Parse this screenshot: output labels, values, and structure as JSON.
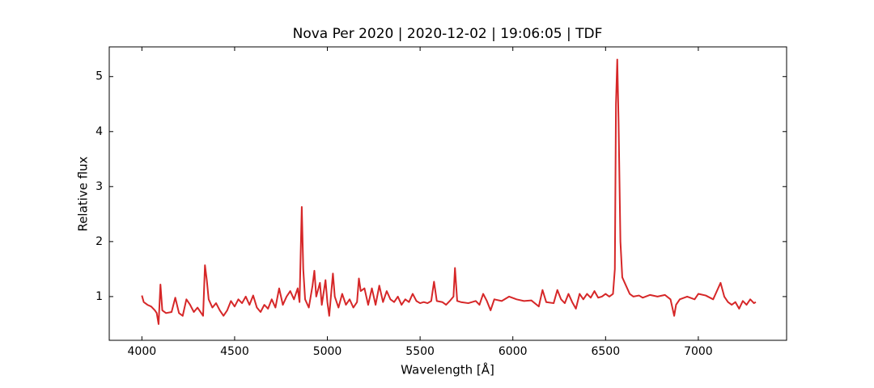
{
  "chart_data": {
    "type": "line",
    "title": "Nova Per 2020 | 2020-12-02 | 19:06:05 | TDF",
    "x_label": "Wavelength [Å]",
    "y_label": "Relative flux",
    "xlim": [
      3824,
      7476
    ],
    "ylim": [
      0.205,
      5.54
    ],
    "xticks": [
      4000,
      4500,
      5000,
      5500,
      6000,
      6500,
      7000
    ],
    "yticks": [
      1,
      2,
      3,
      4,
      5
    ],
    "grid": false,
    "series": [
      {
        "name": "Nova Per 2020",
        "color": "#d62728",
        "x": [
          4000,
          4010,
          4030,
          4050,
          4070,
          4080,
          4090,
          4100,
          4110,
          4130,
          4160,
          4180,
          4200,
          4220,
          4240,
          4260,
          4280,
          4300,
          4320,
          4330,
          4340,
          4350,
          4360,
          4380,
          4400,
          4420,
          4440,
          4460,
          4480,
          4500,
          4520,
          4540,
          4560,
          4580,
          4600,
          4620,
          4640,
          4660,
          4680,
          4700,
          4720,
          4740,
          4760,
          4780,
          4800,
          4820,
          4840,
          4850,
          4862,
          4870,
          4880,
          4900,
          4920,
          4930,
          4940,
          4960,
          4970,
          4990,
          5000,
          5010,
          5030,
          5040,
          5060,
          5080,
          5100,
          5120,
          5140,
          5160,
          5170,
          5180,
          5200,
          5220,
          5240,
          5260,
          5280,
          5300,
          5320,
          5340,
          5360,
          5380,
          5400,
          5420,
          5440,
          5460,
          5480,
          5500,
          5520,
          5540,
          5560,
          5575,
          5590,
          5620,
          5640,
          5660,
          5680,
          5688,
          5700,
          5720,
          5760,
          5800,
          5820,
          5840,
          5860,
          5880,
          5900,
          5940,
          5980,
          6020,
          6060,
          6100,
          6140,
          6160,
          6180,
          6220,
          6240,
          6260,
          6280,
          6300,
          6320,
          6340,
          6360,
          6380,
          6400,
          6420,
          6440,
          6460,
          6480,
          6500,
          6520,
          6540,
          6550,
          6556,
          6563,
          6570,
          6580,
          6590,
          6610,
          6630,
          6650,
          6680,
          6700,
          6740,
          6780,
          6820,
          6850,
          6870,
          6880,
          6900,
          6940,
          6980,
          7000,
          7040,
          7080,
          7100,
          7120,
          7140,
          7160,
          7180,
          7200,
          7220,
          7240,
          7260,
          7280,
          7300,
          7310
        ],
        "values": [
          1.02,
          0.9,
          0.85,
          0.82,
          0.75,
          0.7,
          0.5,
          1.22,
          0.75,
          0.7,
          0.72,
          0.98,
          0.7,
          0.65,
          0.95,
          0.85,
          0.72,
          0.8,
          0.7,
          0.65,
          1.57,
          1.3,
          0.95,
          0.8,
          0.88,
          0.75,
          0.65,
          0.75,
          0.92,
          0.82,
          0.95,
          0.88,
          1.0,
          0.85,
          1.02,
          0.8,
          0.72,
          0.85,
          0.78,
          0.95,
          0.8,
          1.15,
          0.85,
          1.0,
          1.1,
          0.95,
          1.15,
          0.9,
          2.63,
          1.5,
          0.95,
          0.8,
          1.2,
          1.47,
          1.0,
          1.25,
          0.85,
          1.3,
          0.9,
          0.65,
          1.42,
          1.0,
          0.8,
          1.05,
          0.85,
          0.95,
          0.8,
          0.9,
          1.33,
          1.1,
          1.15,
          0.85,
          1.15,
          0.85,
          1.2,
          0.9,
          1.1,
          0.95,
          0.9,
          1.0,
          0.85,
          0.95,
          0.9,
          1.05,
          0.92,
          0.88,
          0.9,
          0.88,
          0.92,
          1.27,
          0.92,
          0.9,
          0.85,
          0.92,
          1.0,
          1.52,
          0.92,
          0.9,
          0.88,
          0.92,
          0.85,
          1.05,
          0.92,
          0.75,
          0.95,
          0.92,
          1.0,
          0.95,
          0.92,
          0.93,
          0.82,
          1.12,
          0.9,
          0.88,
          1.12,
          0.95,
          0.88,
          1.05,
          0.9,
          0.78,
          1.05,
          0.95,
          1.05,
          0.98,
          1.1,
          0.98,
          1.0,
          1.05,
          1.0,
          1.05,
          1.5,
          4.5,
          5.31,
          4.2,
          2.0,
          1.35,
          1.2,
          1.05,
          1.0,
          1.02,
          0.98,
          1.03,
          1.0,
          1.03,
          0.95,
          0.65,
          0.85,
          0.95,
          1.0,
          0.95,
          1.05,
          1.02,
          0.95,
          1.1,
          1.25,
          1.0,
          0.9,
          0.85,
          0.9,
          0.78,
          0.92,
          0.85,
          0.95,
          0.88,
          0.9
        ]
      }
    ]
  }
}
